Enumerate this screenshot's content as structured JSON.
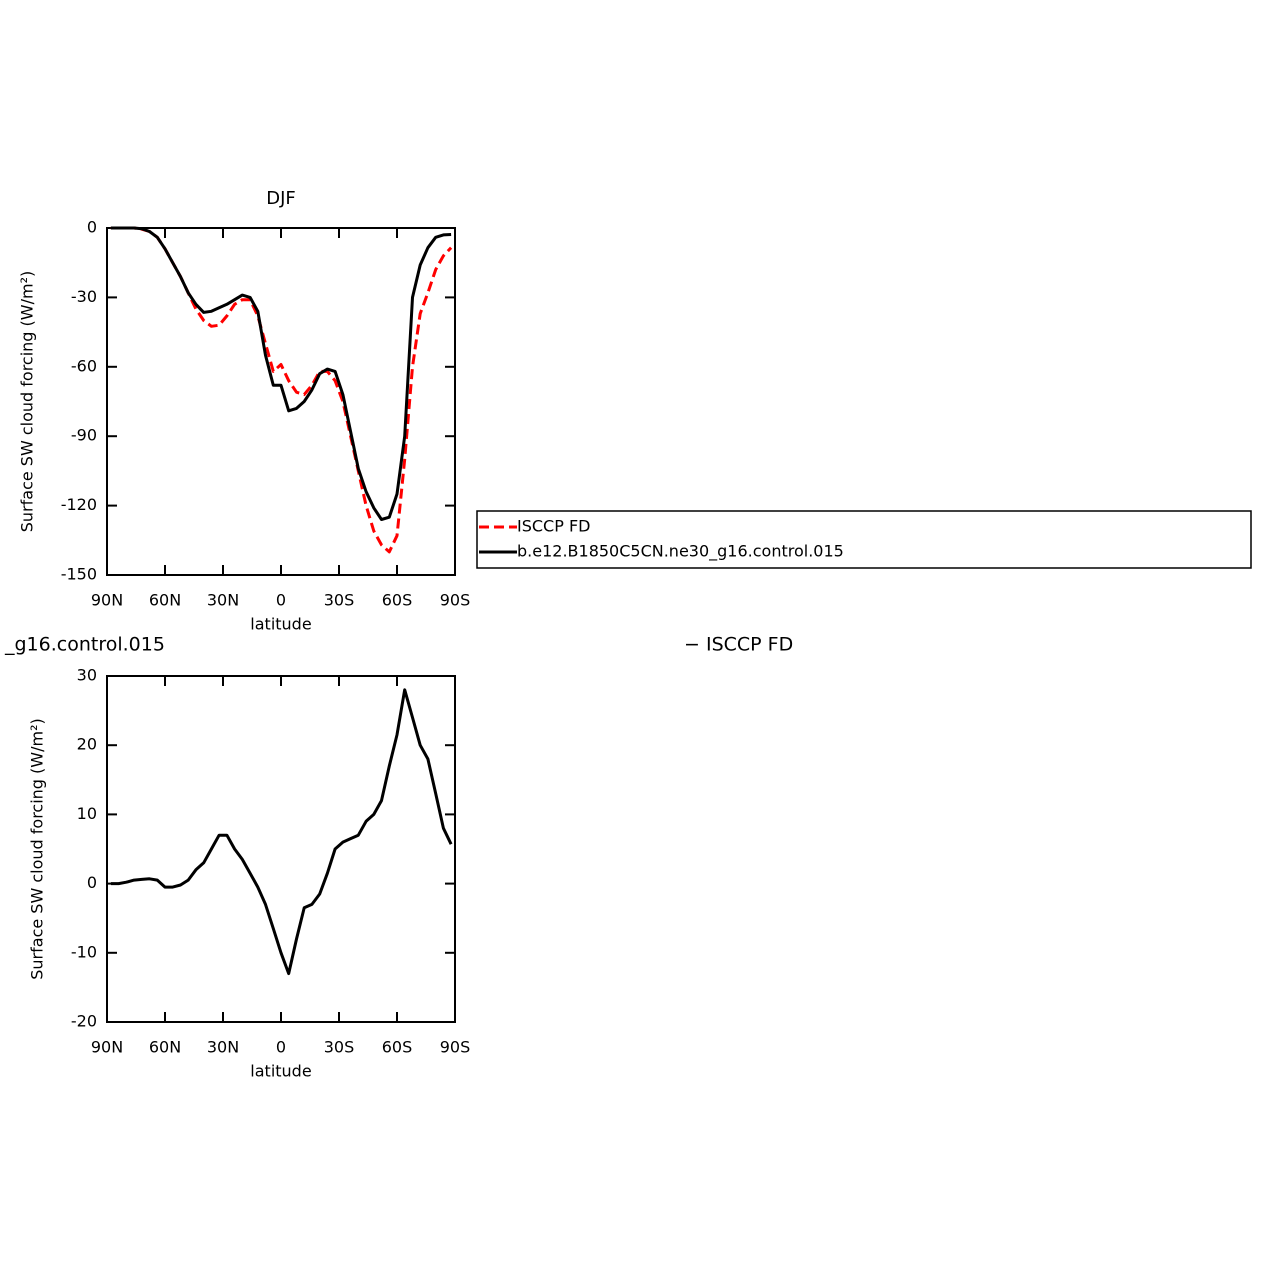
{
  "chart_data": [
    {
      "type": "line",
      "title": "DJF",
      "xlabel": "latitude",
      "ylabel": "Surface SW cloud forcing (W/m²)",
      "x": [
        88,
        84,
        80,
        76,
        72,
        68,
        64,
        60,
        56,
        52,
        48,
        44,
        40,
        36,
        32,
        28,
        24,
        20,
        16,
        12,
        8,
        4,
        0,
        -4,
        -8,
        -12,
        -16,
        -20,
        -24,
        -28,
        -32,
        -36,
        -40,
        -44,
        -48,
        -52,
        -56,
        -60,
        -64,
        -68,
        -72,
        -76,
        -80,
        -84,
        -88
      ],
      "xlim": [
        90,
        -90
      ],
      "xticks": [
        {
          "value": 90,
          "label": "90N"
        },
        {
          "value": 60,
          "label": "60N"
        },
        {
          "value": 30,
          "label": "30N"
        },
        0,
        {
          "value": -30,
          "label": "30S"
        },
        {
          "value": -60,
          "label": "60S"
        },
        {
          "value": -90,
          "label": "90S"
        }
      ],
      "ylim": [
        -150,
        0
      ],
      "yticks": [
        0,
        -30,
        -60,
        -90,
        -120,
        -150
      ],
      "series": [
        {
          "name": "ISCCP FD",
          "color": "#ff0000",
          "dashed": true,
          "values": [
            0,
            0,
            0,
            0,
            -0.5,
            -1.5,
            -4,
            -9,
            -15,
            -21,
            -28,
            -35,
            -40,
            -42.5,
            -42,
            -38,
            -33,
            -31,
            -31,
            -38,
            -50,
            -62,
            -59,
            -66,
            -71,
            -72,
            -68,
            -62,
            -62,
            -66,
            -75,
            -90,
            -105,
            -120,
            -131,
            -137,
            -140,
            -133,
            -100,
            -60,
            -37,
            -28,
            -18,
            -12,
            -8.5
          ]
        },
        {
          "name": "b.e12.B1850C5CN.ne30_g16.control.015",
          "color": "#000000",
          "dashed": false,
          "values": [
            0,
            0,
            0,
            0,
            -0.3,
            -1.5,
            -4,
            -9,
            -15,
            -21,
            -28,
            -33,
            -36.5,
            -36,
            -34.5,
            -33,
            -31,
            -29,
            -30,
            -36,
            -55,
            -68,
            -68,
            -79,
            -78,
            -75,
            -70,
            -63,
            -61,
            -62,
            -72,
            -88,
            -104,
            -114,
            -121,
            -126,
            -125,
            -115,
            -90,
            -30,
            -16,
            -8.5,
            -4,
            -3,
            -2.8
          ]
        }
      ]
    },
    {
      "type": "line",
      "title_left": "_g16.control.015",
      "title_right": "− ISCCP FD",
      "xlabel": "latitude",
      "ylabel": "Surface SW cloud forcing (W/m²)",
      "x": [
        88,
        84,
        80,
        76,
        72,
        68,
        64,
        60,
        56,
        52,
        48,
        44,
        40,
        36,
        32,
        28,
        24,
        20,
        16,
        12,
        8,
        4,
        0,
        -4,
        -8,
        -12,
        -16,
        -20,
        -24,
        -28,
        -32,
        -36,
        -40,
        -44,
        -48,
        -52,
        -56,
        -60,
        -64,
        -68,
        -72,
        -76,
        -80,
        -84,
        -88
      ],
      "xlim": [
        90,
        -90
      ],
      "xticks": [
        {
          "value": 90,
          "label": "90N"
        },
        {
          "value": 60,
          "label": "60N"
        },
        {
          "value": 30,
          "label": "30N"
        },
        0,
        {
          "value": -30,
          "label": "30S"
        },
        {
          "value": -60,
          "label": "60S"
        },
        {
          "value": -90,
          "label": "90S"
        }
      ],
      "ylim": [
        -20,
        30
      ],
      "yticks": [
        30,
        20,
        10,
        0,
        -10,
        -20
      ],
      "series": [
        {
          "color": "#000000",
          "dashed": false,
          "values": [
            0,
            0,
            0.2,
            0.5,
            0.6,
            0.7,
            0.5,
            -0.5,
            -0.5,
            -0.2,
            0.5,
            2,
            3,
            5,
            7,
            7,
            5,
            3.5,
            1.5,
            -0.5,
            -3,
            -6.5,
            -10,
            -13,
            -8,
            -3.5,
            -3,
            -1.5,
            1.5,
            5,
            6,
            6.5,
            7,
            9,
            10,
            12,
            17,
            21.5,
            28,
            24,
            20,
            18,
            13,
            8,
            5.7
          ]
        }
      ]
    }
  ]
}
